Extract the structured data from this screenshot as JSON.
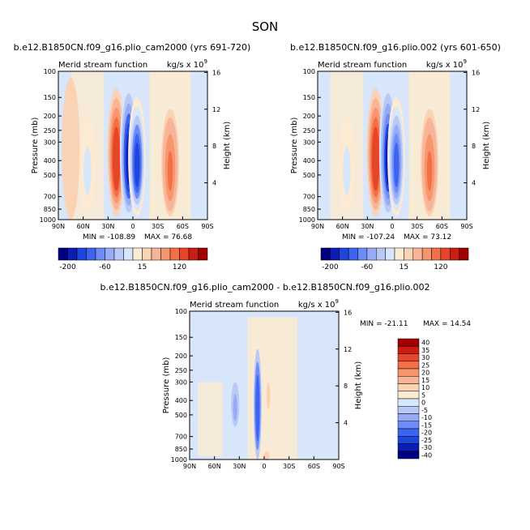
{
  "figure": {
    "title": "SON",
    "diff_title": "b.e12.B1850CN.f09_g16.plio_cam2000 - b.e12.B1850CN.f09_g16.plio.002"
  },
  "chart_data": [
    {
      "type": "heatmap",
      "title": "b.e12.B1850CN.f09_g16.plio_cam2000 (yrs 691-720)",
      "subtitle": "Merid stream function",
      "units": "kg/s x 10^9",
      "xlabel": "",
      "ylabel": "Pressure (mb)",
      "ylabel_right": "Height (km)",
      "x_ticks": [
        "90N",
        "60N",
        "30N",
        "0",
        "30S",
        "60S",
        "90S"
      ],
      "y_ticks": [
        100,
        150,
        200,
        250,
        300,
        400,
        500,
        700,
        850,
        1000
      ],
      "y_ticks_right": [
        4,
        8,
        12,
        16
      ],
      "y_scale": "log",
      "min_label": "MIN = -108.89",
      "max_label": "MAX = 76.68",
      "cells": [
        {
          "lat": 55,
          "p0": 200,
          "p1": 900,
          "value": -20
        },
        {
          "lat": 20,
          "p0": 130,
          "p1": 950,
          "value": 60
        },
        {
          "lat": 5,
          "p0": 120,
          "p1": 1000,
          "value": -100
        },
        {
          "lat": -5,
          "p0": 150,
          "p1": 950,
          "value": -80
        },
        {
          "lat": -45,
          "p0": 180,
          "p1": 950,
          "value": 40
        },
        {
          "lat": 75,
          "p0": 110,
          "p1": 1000,
          "value": 3
        }
      ],
      "colorbar": {
        "labels": [
          "-200",
          "-60",
          "15",
          "120"
        ],
        "colors": [
          "#000080",
          "#0a1eb4",
          "#1e46dc",
          "#3c64f0",
          "#6e8cf5",
          "#96aaf5",
          "#b9c8f5",
          "#d7e6fa",
          "#fcebd2",
          "#fad2b4",
          "#f8b496",
          "#f6966e",
          "#f46e46",
          "#e64628",
          "#c81e14",
          "#a00000"
        ]
      }
    },
    {
      "type": "heatmap",
      "title": "b.e12.B1850CN.f09_g16.plio.002 (yrs 601-650)",
      "subtitle": "Merid stream function",
      "units": "kg/s x 10^9",
      "xlabel": "",
      "ylabel": "Pressure (mb)",
      "ylabel_right": "Height (km)",
      "x_ticks": [
        "90N",
        "60N",
        "30N",
        "0",
        "30S",
        "60S",
        "90S"
      ],
      "y_ticks": [
        100,
        150,
        200,
        250,
        300,
        400,
        500,
        700,
        850,
        1000
      ],
      "y_ticks_right": [
        4,
        8,
        12,
        16
      ],
      "y_scale": "log",
      "min_label": "MIN = -107.24",
      "max_label": "MAX = 73.12",
      "cells": [
        {
          "lat": 55,
          "p0": 200,
          "p1": 900,
          "value": -20
        },
        {
          "lat": 20,
          "p0": 130,
          "p1": 950,
          "value": 58
        },
        {
          "lat": 5,
          "p0": 120,
          "p1": 1000,
          "value": -98
        },
        {
          "lat": -5,
          "p0": 150,
          "p1": 950,
          "value": -78
        },
        {
          "lat": -45,
          "p0": 180,
          "p1": 950,
          "value": 40
        }
      ],
      "colorbar": {
        "labels": [
          "-200",
          "-60",
          "15",
          "120"
        ],
        "colors": [
          "#000080",
          "#0a1eb4",
          "#1e46dc",
          "#3c64f0",
          "#6e8cf5",
          "#96aaf5",
          "#b9c8f5",
          "#d7e6fa",
          "#fcebd2",
          "#fad2b4",
          "#f8b496",
          "#f6966e",
          "#f46e46",
          "#e64628",
          "#c81e14",
          "#a00000"
        ]
      }
    },
    {
      "type": "heatmap",
      "title": "",
      "subtitle": "Merid stream function",
      "units": "kg/s x 10^9",
      "xlabel": "",
      "ylabel": "Pressure (mb)",
      "ylabel_right": "Height (km)",
      "x_ticks": [
        "90N",
        "60N",
        "30N",
        "0",
        "30S",
        "60S",
        "90S"
      ],
      "y_ticks": [
        100,
        150,
        200,
        250,
        300,
        400,
        500,
        700,
        850,
        1000
      ],
      "y_ticks_right": [
        4,
        8,
        12,
        16
      ],
      "y_scale": "log",
      "min_label": "MIN = -21.11",
      "max_label": "MAX = 14.54",
      "cells": [
        {
          "lat": 8,
          "p0": 180,
          "p1": 1000,
          "value": -20
        },
        {
          "lat": -5,
          "p0": 250,
          "p1": 500,
          "value": 10
        },
        {
          "lat": 35,
          "p0": 300,
          "p1": 600,
          "value": -8
        },
        {
          "lat": -3,
          "p0": 850,
          "p1": 1000,
          "value": 12
        }
      ],
      "colorbar": {
        "labels": [
          "40",
          "35",
          "30",
          "25",
          "20",
          "15",
          "10",
          "5",
          "0",
          "-5",
          "-10",
          "-15",
          "-20",
          "-25",
          "-30",
          "-40"
        ],
        "colors": [
          "#a00000",
          "#c81e14",
          "#e64628",
          "#f46e46",
          "#f6966e",
          "#f8b496",
          "#fad2b4",
          "#fcebd2",
          "#d7e6fa",
          "#b9c8f5",
          "#96aaf5",
          "#6e8cf5",
          "#3c64f0",
          "#1e46dc",
          "#0a1eb4",
          "#000080"
        ]
      }
    }
  ]
}
